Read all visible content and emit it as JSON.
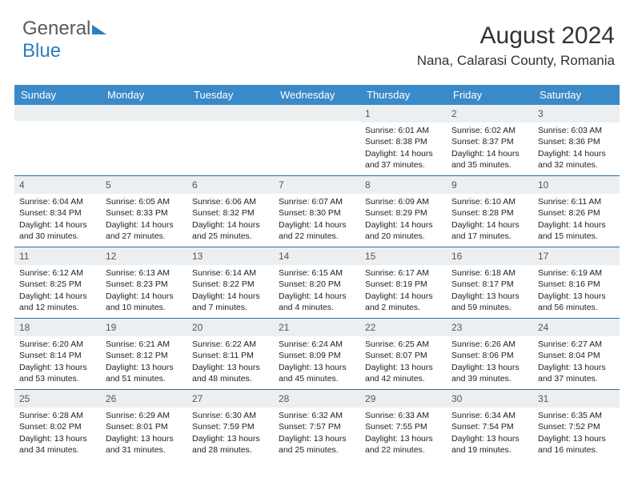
{
  "logo": {
    "text1": "General",
    "text2": "Blue"
  },
  "title": "August 2024",
  "location": "Nana, Calarasi County, Romania",
  "colors": {
    "header_bg": "#3a8ac9",
    "header_text": "#ffffff",
    "num_bg": "#eceff1",
    "border": "#2d6da3"
  },
  "font": {
    "title_size": 30,
    "loc_size": 17,
    "hdr_size": 13,
    "cell_size": 10.5
  },
  "dayNames": [
    "Sunday",
    "Monday",
    "Tuesday",
    "Wednesday",
    "Thursday",
    "Friday",
    "Saturday"
  ],
  "weeks": [
    [
      {
        "empty": true
      },
      {
        "empty": true
      },
      {
        "empty": true
      },
      {
        "empty": true
      },
      {
        "n": "1",
        "sr": "6:01 AM",
        "ss": "8:38 PM",
        "dl": "14 hours and 37 minutes."
      },
      {
        "n": "2",
        "sr": "6:02 AM",
        "ss": "8:37 PM",
        "dl": "14 hours and 35 minutes."
      },
      {
        "n": "3",
        "sr": "6:03 AM",
        "ss": "8:36 PM",
        "dl": "14 hours and 32 minutes."
      }
    ],
    [
      {
        "n": "4",
        "sr": "6:04 AM",
        "ss": "8:34 PM",
        "dl": "14 hours and 30 minutes."
      },
      {
        "n": "5",
        "sr": "6:05 AM",
        "ss": "8:33 PM",
        "dl": "14 hours and 27 minutes."
      },
      {
        "n": "6",
        "sr": "6:06 AM",
        "ss": "8:32 PM",
        "dl": "14 hours and 25 minutes."
      },
      {
        "n": "7",
        "sr": "6:07 AM",
        "ss": "8:30 PM",
        "dl": "14 hours and 22 minutes."
      },
      {
        "n": "8",
        "sr": "6:09 AM",
        "ss": "8:29 PM",
        "dl": "14 hours and 20 minutes."
      },
      {
        "n": "9",
        "sr": "6:10 AM",
        "ss": "8:28 PM",
        "dl": "14 hours and 17 minutes."
      },
      {
        "n": "10",
        "sr": "6:11 AM",
        "ss": "8:26 PM",
        "dl": "14 hours and 15 minutes."
      }
    ],
    [
      {
        "n": "11",
        "sr": "6:12 AM",
        "ss": "8:25 PM",
        "dl": "14 hours and 12 minutes."
      },
      {
        "n": "12",
        "sr": "6:13 AM",
        "ss": "8:23 PM",
        "dl": "14 hours and 10 minutes."
      },
      {
        "n": "13",
        "sr": "6:14 AM",
        "ss": "8:22 PM",
        "dl": "14 hours and 7 minutes."
      },
      {
        "n": "14",
        "sr": "6:15 AM",
        "ss": "8:20 PM",
        "dl": "14 hours and 4 minutes."
      },
      {
        "n": "15",
        "sr": "6:17 AM",
        "ss": "8:19 PM",
        "dl": "14 hours and 2 minutes."
      },
      {
        "n": "16",
        "sr": "6:18 AM",
        "ss": "8:17 PM",
        "dl": "13 hours and 59 minutes."
      },
      {
        "n": "17",
        "sr": "6:19 AM",
        "ss": "8:16 PM",
        "dl": "13 hours and 56 minutes."
      }
    ],
    [
      {
        "n": "18",
        "sr": "6:20 AM",
        "ss": "8:14 PM",
        "dl": "13 hours and 53 minutes."
      },
      {
        "n": "19",
        "sr": "6:21 AM",
        "ss": "8:12 PM",
        "dl": "13 hours and 51 minutes."
      },
      {
        "n": "20",
        "sr": "6:22 AM",
        "ss": "8:11 PM",
        "dl": "13 hours and 48 minutes."
      },
      {
        "n": "21",
        "sr": "6:24 AM",
        "ss": "8:09 PM",
        "dl": "13 hours and 45 minutes."
      },
      {
        "n": "22",
        "sr": "6:25 AM",
        "ss": "8:07 PM",
        "dl": "13 hours and 42 minutes."
      },
      {
        "n": "23",
        "sr": "6:26 AM",
        "ss": "8:06 PM",
        "dl": "13 hours and 39 minutes."
      },
      {
        "n": "24",
        "sr": "6:27 AM",
        "ss": "8:04 PM",
        "dl": "13 hours and 37 minutes."
      }
    ],
    [
      {
        "n": "25",
        "sr": "6:28 AM",
        "ss": "8:02 PM",
        "dl": "13 hours and 34 minutes."
      },
      {
        "n": "26",
        "sr": "6:29 AM",
        "ss": "8:01 PM",
        "dl": "13 hours and 31 minutes."
      },
      {
        "n": "27",
        "sr": "6:30 AM",
        "ss": "7:59 PM",
        "dl": "13 hours and 28 minutes."
      },
      {
        "n": "28",
        "sr": "6:32 AM",
        "ss": "7:57 PM",
        "dl": "13 hours and 25 minutes."
      },
      {
        "n": "29",
        "sr": "6:33 AM",
        "ss": "7:55 PM",
        "dl": "13 hours and 22 minutes."
      },
      {
        "n": "30",
        "sr": "6:34 AM",
        "ss": "7:54 PM",
        "dl": "13 hours and 19 minutes."
      },
      {
        "n": "31",
        "sr": "6:35 AM",
        "ss": "7:52 PM",
        "dl": "13 hours and 16 minutes."
      }
    ]
  ],
  "labels": {
    "sunrise": "Sunrise: ",
    "sunset": "Sunset: ",
    "daylight": "Daylight: "
  }
}
